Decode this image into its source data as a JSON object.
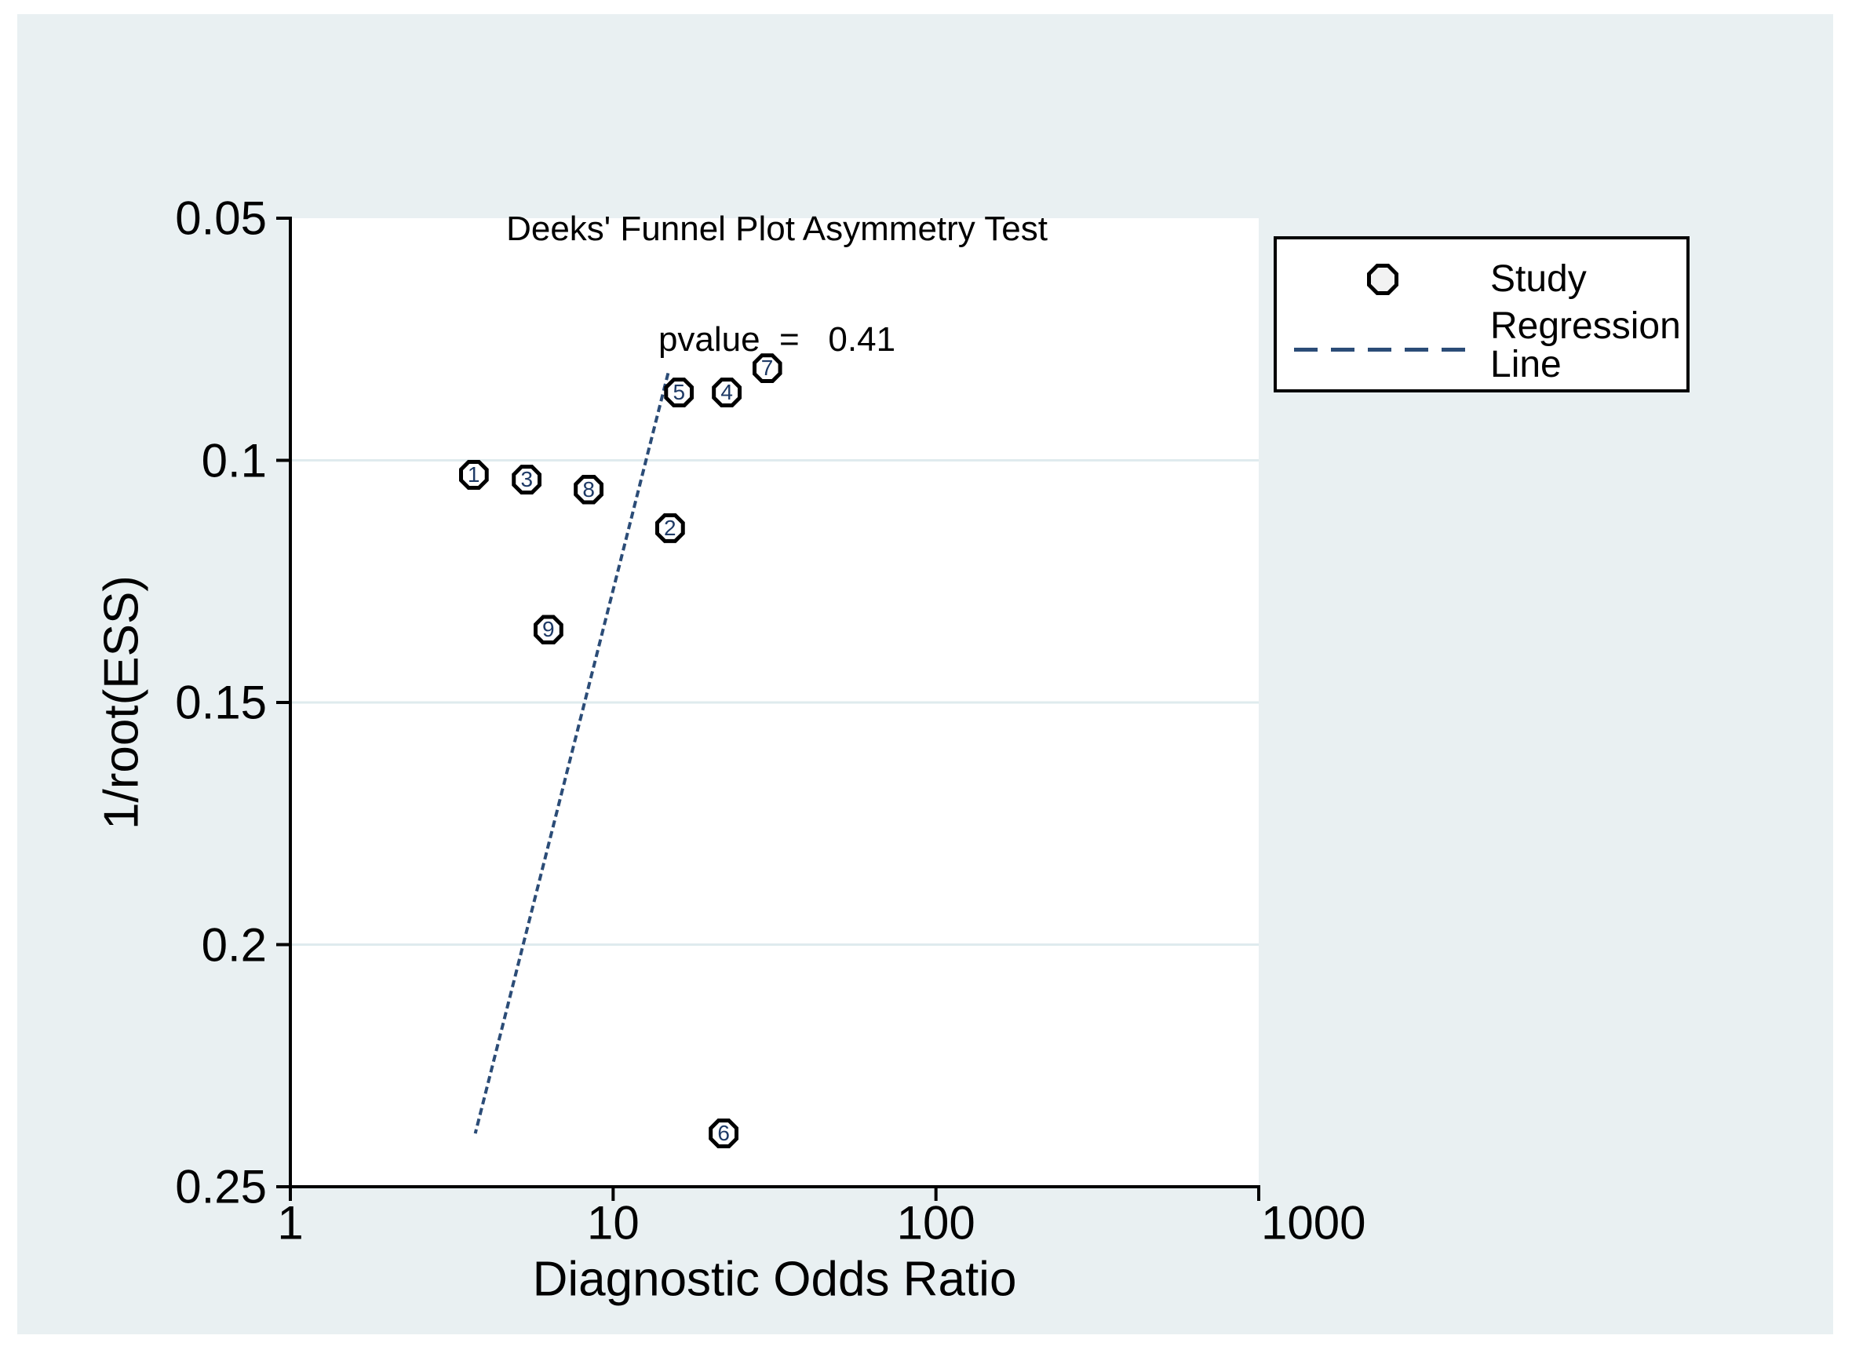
{
  "title": {
    "line1": "Deeks' Funnel Plot Asymmetry Test",
    "line2": "pvalue  =   0.41"
  },
  "legend": {
    "study_label": "Study",
    "regression_line1": "Regression",
    "regression_line2": "Line"
  },
  "chart_data": {
    "type": "scatter",
    "title": "Deeks' Funnel Plot Asymmetry Test",
    "subtitle": "pvalue = 0.41",
    "xlabel": "Diagnostic Odds Ratio",
    "ylabel": "1/root(ESS)",
    "x_scale": "log10",
    "xlim": [
      1,
      1000
    ],
    "x_ticks": [
      1,
      10,
      100,
      1000
    ],
    "x_tick_labels": [
      "1",
      "10",
      "100",
      "1000"
    ],
    "y_axis_reversed": true,
    "ylim": [
      0.05,
      0.25
    ],
    "y_ticks": [
      0.05,
      0.1,
      0.15,
      0.2,
      0.25
    ],
    "y_tick_labels": [
      "0.05",
      "0.1",
      "0.15",
      "0.2",
      "0.25"
    ],
    "grid_y_values": [
      0.1,
      0.15,
      0.2
    ],
    "grid_on": true,
    "legend_position": "outside-top-right",
    "points": [
      {
        "label": "1",
        "dor": 3.7,
        "ess": 0.103
      },
      {
        "label": "2",
        "dor": 15.0,
        "ess": 0.114
      },
      {
        "label": "3",
        "dor": 5.4,
        "ess": 0.104
      },
      {
        "label": "4",
        "dor": 22.5,
        "ess": 0.086
      },
      {
        "label": "5",
        "dor": 16.0,
        "ess": 0.086
      },
      {
        "label": "6",
        "dor": 22.0,
        "ess": 0.239
      },
      {
        "label": "7",
        "dor": 30.0,
        "ess": 0.081
      },
      {
        "label": "8",
        "dor": 8.4,
        "ess": 0.106
      },
      {
        "label": "9",
        "dor": 6.3,
        "ess": 0.135
      }
    ],
    "regression_line": [
      {
        "dor": 14.8,
        "ess": 0.082
      },
      {
        "dor": 3.74,
        "ess": 0.239
      }
    ],
    "series_legend": [
      {
        "label": "Study",
        "marker": "circle"
      },
      {
        "label": "Regression Line",
        "marker": "dashed-line"
      }
    ]
  },
  "colors": {
    "panel_bg": "#e9f0f2",
    "plot_bg": "#ffffff",
    "axis": "#000000",
    "grid": "#dfebee",
    "regression_navy": "#2b4c77",
    "marker_number": "#1e3a66",
    "marker_border": "#000000",
    "marker_fill": "#ffffff"
  }
}
